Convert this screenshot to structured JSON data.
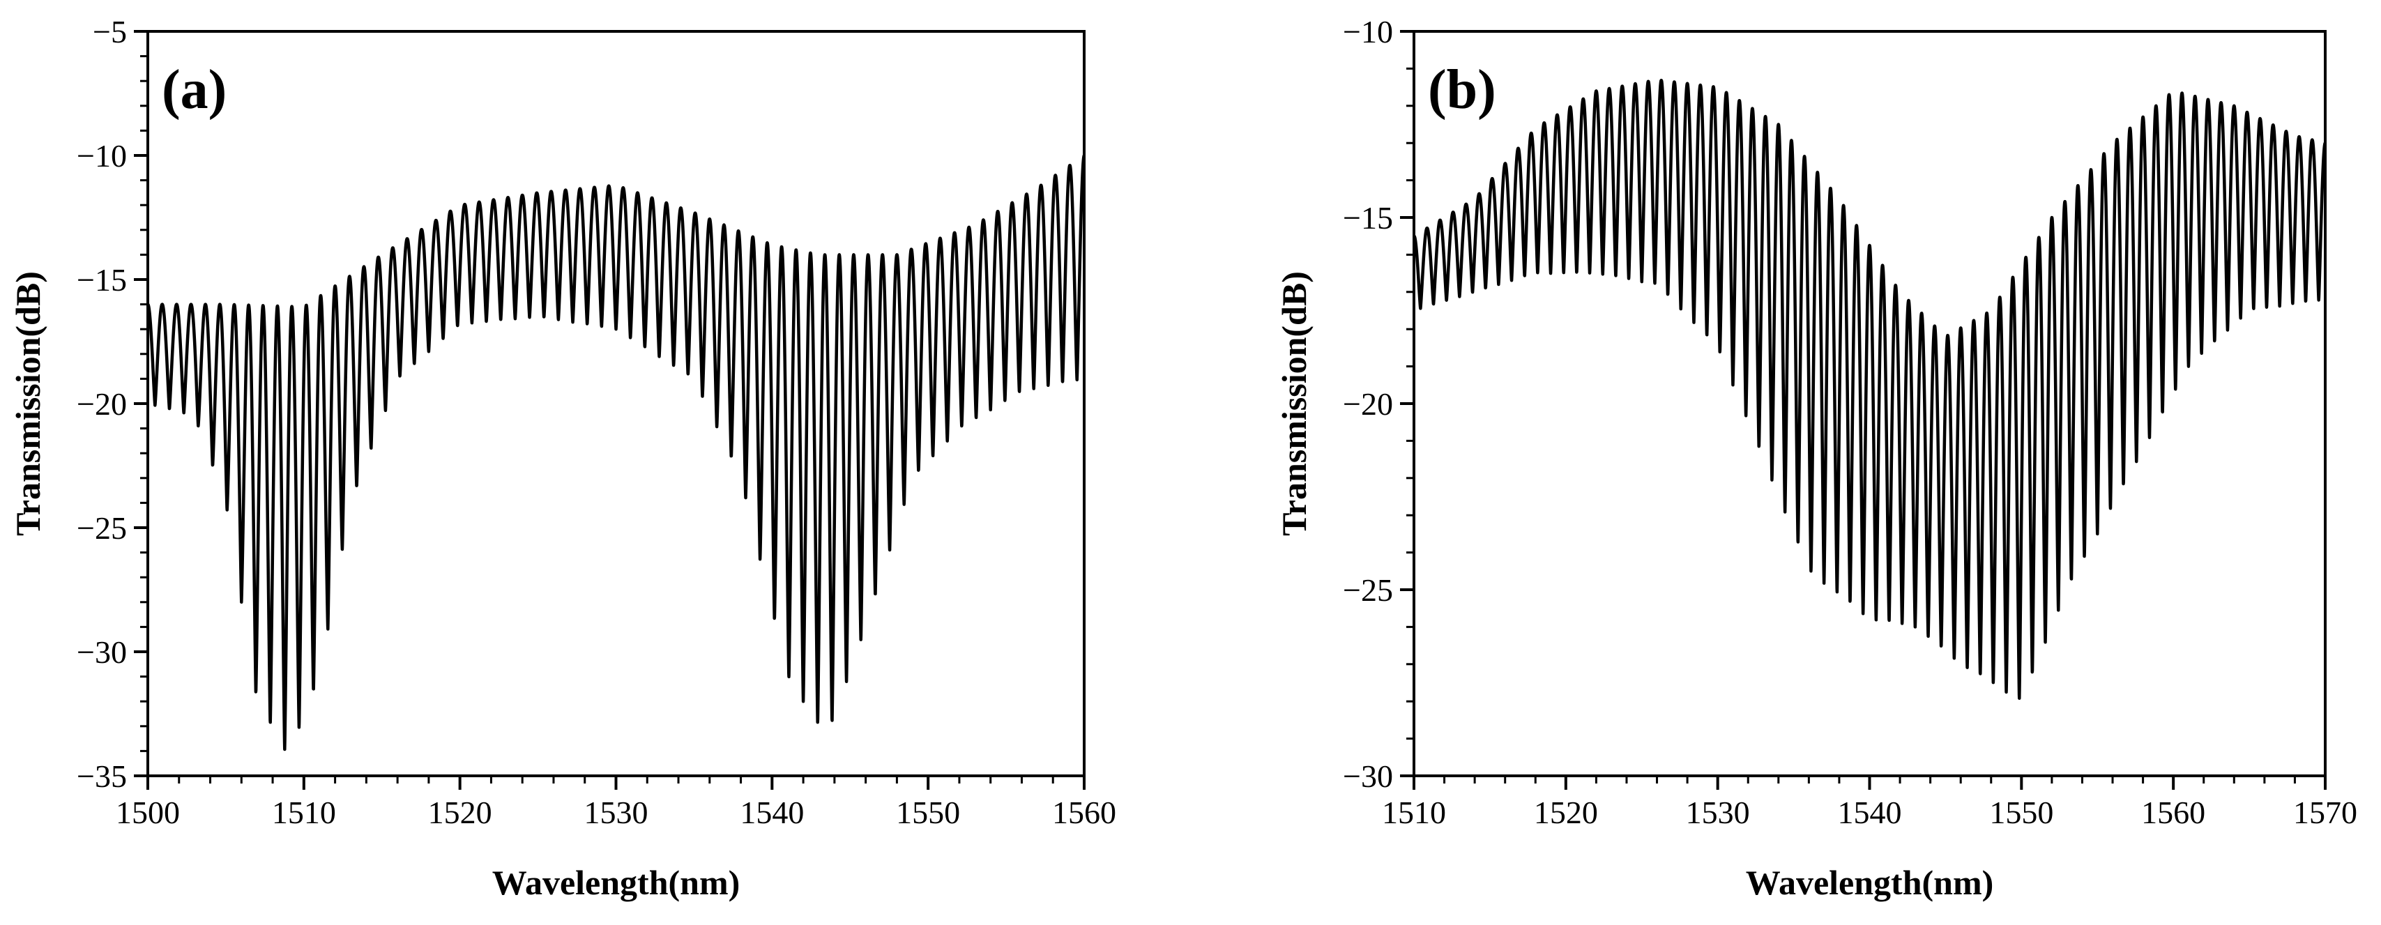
{
  "chart_data": [
    {
      "type": "line",
      "panel_label": "(a)",
      "title": "",
      "xlabel": "Wavelength(nm)",
      "ylabel": "Transmission(dB)",
      "xlim": [
        1500,
        1560
      ],
      "ylim": [
        -35,
        -5
      ],
      "xticks": [
        1500,
        1510,
        1520,
        1530,
        1540,
        1550,
        1560
      ],
      "yticks": [
        -35,
        -30,
        -25,
        -20,
        -15,
        -10,
        -5
      ],
      "xtick_labels": [
        "1500",
        "1510",
        "1520",
        "1530",
        "1540",
        "1550",
        "1560"
      ],
      "ytick_labels": [
        "−35",
        "−30",
        "−25",
        "−20",
        "−15",
        "−10",
        "−5"
      ],
      "grid": false,
      "legend": "none",
      "fringe_count": 65,
      "upper_envelope": {
        "x": [
          1500,
          1505,
          1510,
          1515,
          1520,
          1525,
          1530,
          1535,
          1540,
          1543,
          1548,
          1553,
          1557,
          1560
        ],
        "y": [
          -16.0,
          -16.0,
          -16.1,
          -14.0,
          -12.0,
          -11.5,
          -11.2,
          -12.3,
          -13.6,
          -14.0,
          -14.0,
          -12.8,
          -11.3,
          -10.0
        ]
      },
      "lower_envelope": {
        "x": [
          1500,
          1503,
          1505,
          1507,
          1509,
          1511,
          1513,
          1516,
          1520,
          1525,
          1530,
          1535,
          1538,
          1541,
          1543.5,
          1546,
          1549,
          1552,
          1556,
          1560
        ],
        "y": [
          -20.0,
          -20.5,
          -24.0,
          -32.0,
          -34.2,
          -31.0,
          -24.0,
          -19.0,
          -16.8,
          -16.5,
          -17.0,
          -19.0,
          -23.0,
          -31.0,
          -33.5,
          -29.0,
          -23.0,
          -21.0,
          -19.5,
          -19.0
        ]
      }
    },
    {
      "type": "line",
      "panel_label": "(b)",
      "title": "",
      "xlabel": "Wavelength(nm)",
      "ylabel": "Transmission(dB)",
      "xlim": [
        1510,
        1570
      ],
      "ylim": [
        -30,
        -10
      ],
      "xticks": [
        1510,
        1520,
        1530,
        1540,
        1550,
        1560,
        1570
      ],
      "yticks": [
        -30,
        -25,
        -20,
        -15,
        -10
      ],
      "xtick_labels": [
        "1510",
        "1520",
        "1530",
        "1540",
        "1550",
        "1560",
        "1570"
      ],
      "ytick_labels": [
        "−30",
        "−25",
        "−20",
        "−15",
        "−10"
      ],
      "grid": false,
      "legend": "none",
      "fringe_count": 70,
      "upper_envelope": {
        "x": [
          1510,
          1514,
          1518,
          1522,
          1526,
          1530,
          1534,
          1538,
          1542,
          1545,
          1548,
          1552,
          1556,
          1560,
          1564,
          1568,
          1570
        ],
        "y": [
          -15.5,
          -14.5,
          -12.6,
          -11.6,
          -11.3,
          -11.5,
          -12.5,
          -14.5,
          -17.0,
          -18.2,
          -17.5,
          -15.0,
          -13.0,
          -11.6,
          -12.0,
          -12.8,
          -13.0
        ]
      },
      "lower_envelope": {
        "x": [
          1510,
          1514,
          1518,
          1522,
          1526,
          1530,
          1533,
          1536,
          1540,
          1543,
          1546,
          1550,
          1553,
          1557,
          1561,
          1565,
          1570
        ],
        "y": [
          -17.5,
          -17.0,
          -16.5,
          -16.5,
          -16.8,
          -18.5,
          -21.5,
          -24.5,
          -25.8,
          -26.0,
          -27.0,
          -28.0,
          -25.0,
          -22.0,
          -19.0,
          -17.5,
          -17.2
        ]
      }
    }
  ]
}
